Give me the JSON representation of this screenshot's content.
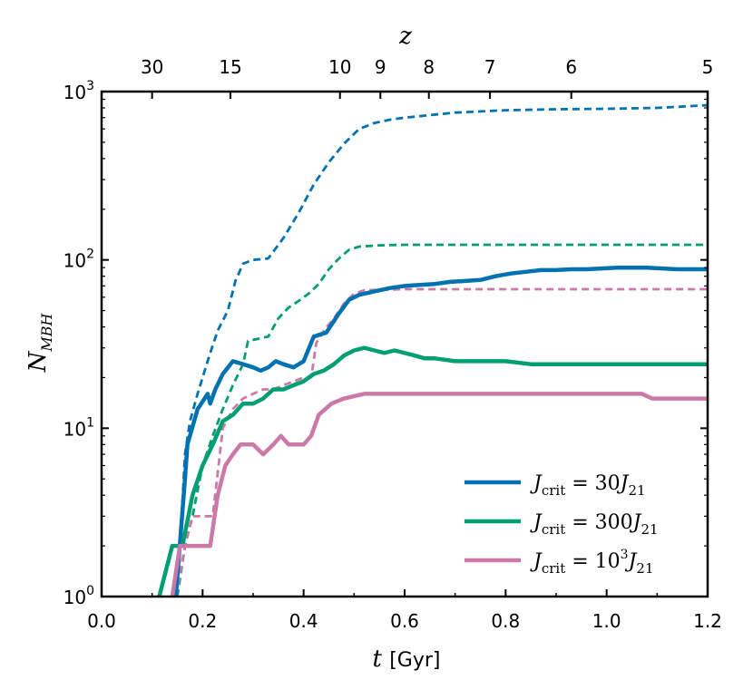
{
  "chart_data": {
    "type": "line",
    "title": "",
    "xlabel": {
      "var": "t",
      "unit": "[Gyr]"
    },
    "ylabel": {
      "base": "N",
      "sub": "MBH"
    },
    "top_xlabel": "z",
    "xlim": [
      0.0,
      1.2
    ],
    "ylim_log10": [
      0,
      3
    ],
    "y_scale": "log",
    "grid": false,
    "legend_position": "lower-right",
    "x_ticks": [
      {
        "value": 0.0,
        "label": "0.0"
      },
      {
        "value": 0.2,
        "label": "0.2"
      },
      {
        "value": 0.4,
        "label": "0.4"
      },
      {
        "value": 0.6,
        "label": "0.6"
      },
      {
        "value": 0.8,
        "label": "0.8"
      },
      {
        "value": 1.0,
        "label": "1.0"
      },
      {
        "value": 1.2,
        "label": "1.2"
      }
    ],
    "y_ticks": [
      {
        "value": 1,
        "base": "10",
        "exp": "0"
      },
      {
        "value": 10,
        "base": "10",
        "exp": "1"
      },
      {
        "value": 100,
        "base": "10",
        "exp": "2"
      },
      {
        "value": 1000,
        "base": "10",
        "exp": "3"
      }
    ],
    "top_ticks": [
      {
        "t": 0.1,
        "label": "30"
      },
      {
        "t": 0.255,
        "label": "15"
      },
      {
        "t": 0.472,
        "label": "10"
      },
      {
        "t": 0.552,
        "label": "9"
      },
      {
        "t": 0.648,
        "label": "8"
      },
      {
        "t": 0.769,
        "label": "7"
      },
      {
        "t": 0.93,
        "label": "6"
      },
      {
        "t": 1.2,
        "label": "5"
      }
    ],
    "series": [
      {
        "name": "J_crit = 30 J_21",
        "legend": {
          "prefix": "J",
          "sub": "crit",
          "eq": "= 30",
          "suffix": "J",
          "suffix_sub": "21"
        },
        "color": "#0072b2",
        "style": "solid",
        "points": [
          [
            0.147,
            1
          ],
          [
            0.165,
            5
          ],
          [
            0.17,
            8
          ],
          [
            0.19,
            13
          ],
          [
            0.21,
            16
          ],
          [
            0.215,
            14
          ],
          [
            0.225,
            17
          ],
          [
            0.24,
            21
          ],
          [
            0.26,
            25
          ],
          [
            0.28,
            24
          ],
          [
            0.3,
            23
          ],
          [
            0.315,
            22
          ],
          [
            0.33,
            23
          ],
          [
            0.345,
            25
          ],
          [
            0.36,
            24
          ],
          [
            0.38,
            23
          ],
          [
            0.4,
            25
          ],
          [
            0.42,
            35
          ],
          [
            0.445,
            37
          ],
          [
            0.47,
            48
          ],
          [
            0.49,
            58
          ],
          [
            0.51,
            62
          ],
          [
            0.54,
            65
          ],
          [
            0.57,
            68
          ],
          [
            0.6,
            70
          ],
          [
            0.63,
            71
          ],
          [
            0.66,
            72
          ],
          [
            0.69,
            74
          ],
          [
            0.72,
            75
          ],
          [
            0.75,
            76
          ],
          [
            0.78,
            80
          ],
          [
            0.81,
            83
          ],
          [
            0.84,
            85
          ],
          [
            0.87,
            87
          ],
          [
            0.9,
            87
          ],
          [
            0.93,
            88
          ],
          [
            0.96,
            88
          ],
          [
            0.99,
            89
          ],
          [
            1.02,
            90
          ],
          [
            1.05,
            90
          ],
          [
            1.08,
            90
          ],
          [
            1.11,
            89
          ],
          [
            1.14,
            88
          ],
          [
            1.17,
            88
          ],
          [
            1.2,
            88
          ]
        ]
      },
      {
        "name": "J_crit = 300 J_21",
        "legend": {
          "prefix": "J",
          "sub": "crit",
          "eq": "= 300",
          "suffix": "J",
          "suffix_sub": "21"
        },
        "color": "#009e73",
        "style": "solid",
        "points": [
          [
            0.114,
            1
          ],
          [
            0.14,
            2
          ],
          [
            0.16,
            2
          ],
          [
            0.18,
            4
          ],
          [
            0.2,
            6
          ],
          [
            0.22,
            8
          ],
          [
            0.24,
            11
          ],
          [
            0.26,
            12
          ],
          [
            0.28,
            14
          ],
          [
            0.3,
            14
          ],
          [
            0.32,
            15
          ],
          [
            0.34,
            17
          ],
          [
            0.36,
            17
          ],
          [
            0.38,
            18
          ],
          [
            0.4,
            19
          ],
          [
            0.42,
            21
          ],
          [
            0.44,
            22
          ],
          [
            0.46,
            24
          ],
          [
            0.48,
            27
          ],
          [
            0.5,
            29
          ],
          [
            0.52,
            30
          ],
          [
            0.54,
            29
          ],
          [
            0.56,
            28
          ],
          [
            0.58,
            29
          ],
          [
            0.6,
            28
          ],
          [
            0.62,
            27
          ],
          [
            0.64,
            26
          ],
          [
            0.66,
            26
          ],
          [
            0.7,
            25
          ],
          [
            0.75,
            25
          ],
          [
            0.8,
            25
          ],
          [
            0.85,
            24
          ],
          [
            0.9,
            24
          ],
          [
            0.95,
            24
          ],
          [
            1.0,
            24
          ],
          [
            1.05,
            24
          ],
          [
            1.1,
            24
          ],
          [
            1.15,
            24
          ],
          [
            1.2,
            24
          ]
        ]
      },
      {
        "name": "J_crit = 10^3 J_21",
        "legend": {
          "prefix": "J",
          "sub": "crit",
          "eq": "= 10",
          "sup": "3",
          "suffix": "J",
          "suffix_sub": "21"
        },
        "color": "#cc79a7",
        "style": "solid",
        "points": [
          [
            0.14,
            1
          ],
          [
            0.155,
            2
          ],
          [
            0.17,
            2
          ],
          [
            0.2,
            2
          ],
          [
            0.215,
            2
          ],
          [
            0.23,
            4
          ],
          [
            0.245,
            6
          ],
          [
            0.26,
            7
          ],
          [
            0.275,
            8
          ],
          [
            0.3,
            8
          ],
          [
            0.32,
            7
          ],
          [
            0.34,
            8
          ],
          [
            0.355,
            9
          ],
          [
            0.37,
            8
          ],
          [
            0.38,
            8
          ],
          [
            0.4,
            8
          ],
          [
            0.415,
            9
          ],
          [
            0.43,
            12
          ],
          [
            0.455,
            14
          ],
          [
            0.48,
            15
          ],
          [
            0.5,
            15.5
          ],
          [
            0.52,
            16
          ],
          [
            0.6,
            16
          ],
          [
            0.7,
            16
          ],
          [
            0.8,
            16
          ],
          [
            0.9,
            16
          ],
          [
            1.0,
            16
          ],
          [
            1.07,
            16
          ],
          [
            1.09,
            15
          ],
          [
            1.15,
            15
          ],
          [
            1.2,
            15
          ]
        ]
      },
      {
        "name": "J_crit = 30 J_21 (dashed)",
        "color": "#0072b2",
        "style": "dashed",
        "points": [
          [
            0.15,
            1
          ],
          [
            0.165,
            7
          ],
          [
            0.175,
            11
          ],
          [
            0.19,
            16
          ],
          [
            0.2,
            20
          ],
          [
            0.215,
            28
          ],
          [
            0.23,
            38
          ],
          [
            0.25,
            50
          ],
          [
            0.265,
            75
          ],
          [
            0.28,
            95
          ],
          [
            0.3,
            100
          ],
          [
            0.33,
            102
          ],
          [
            0.36,
            135
          ],
          [
            0.39,
            190
          ],
          [
            0.42,
            280
          ],
          [
            0.45,
            380
          ],
          [
            0.48,
            490
          ],
          [
            0.51,
            600
          ],
          [
            0.54,
            650
          ],
          [
            0.57,
            680
          ],
          [
            0.6,
            700
          ],
          [
            0.7,
            750
          ],
          [
            0.8,
            775
          ],
          [
            0.9,
            785
          ],
          [
            1.0,
            790
          ],
          [
            1.1,
            800
          ],
          [
            1.2,
            830
          ]
        ]
      },
      {
        "name": "J_crit = 300 J_21 (dashed)",
        "color": "#009e73",
        "style": "dashed",
        "points": [
          [
            0.15,
            1
          ],
          [
            0.165,
            2
          ],
          [
            0.18,
            3
          ],
          [
            0.2,
            6
          ],
          [
            0.22,
            9
          ],
          [
            0.24,
            13
          ],
          [
            0.26,
            18
          ],
          [
            0.28,
            24
          ],
          [
            0.29,
            33
          ],
          [
            0.31,
            34
          ],
          [
            0.33,
            35
          ],
          [
            0.35,
            45
          ],
          [
            0.37,
            52
          ],
          [
            0.39,
            57
          ],
          [
            0.41,
            63
          ],
          [
            0.43,
            72
          ],
          [
            0.45,
            88
          ],
          [
            0.47,
            102
          ],
          [
            0.49,
            115
          ],
          [
            0.51,
            120
          ],
          [
            0.55,
            122
          ],
          [
            0.6,
            123
          ],
          [
            0.7,
            123
          ],
          [
            0.8,
            123
          ],
          [
            0.9,
            123
          ],
          [
            1.0,
            123
          ],
          [
            1.1,
            123
          ],
          [
            1.2,
            123
          ]
        ]
      },
      {
        "name": "J_crit = 10^3 J_21 (dashed)",
        "color": "#cc79a7",
        "style": "dashed",
        "points": [
          [
            0.148,
            1
          ],
          [
            0.165,
            2
          ],
          [
            0.18,
            3
          ],
          [
            0.2,
            3
          ],
          [
            0.22,
            3
          ],
          [
            0.24,
            10
          ],
          [
            0.26,
            13
          ],
          [
            0.28,
            15
          ],
          [
            0.3,
            16
          ],
          [
            0.32,
            17
          ],
          [
            0.34,
            17
          ],
          [
            0.36,
            18
          ],
          [
            0.38,
            19
          ],
          [
            0.4,
            20
          ],
          [
            0.415,
            20
          ],
          [
            0.425,
            32
          ],
          [
            0.44,
            38
          ],
          [
            0.46,
            45
          ],
          [
            0.48,
            55
          ],
          [
            0.5,
            63
          ],
          [
            0.52,
            66
          ],
          [
            0.6,
            67
          ],
          [
            0.7,
            67
          ],
          [
            0.8,
            67
          ],
          [
            0.9,
            67
          ],
          [
            1.0,
            67
          ],
          [
            1.1,
            67
          ],
          [
            1.2,
            67
          ]
        ]
      }
    ],
    "legend_order": [
      0,
      1,
      2
    ]
  }
}
